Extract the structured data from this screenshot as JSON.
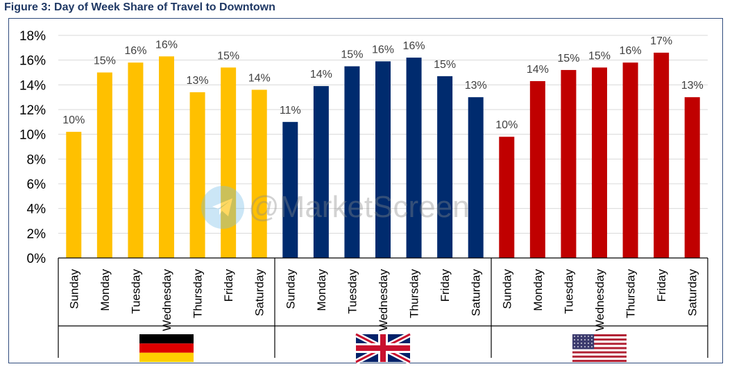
{
  "figure_title": "Figure 3: Day of Week Share of Travel to Downtown",
  "watermark": "@MarketScreen",
  "colors": {
    "germany": "#FFC000",
    "uk": "#002B6E",
    "us": "#C00000",
    "grid": "#d9d9d9",
    "axis": "#000000"
  },
  "chart_data": {
    "type": "bar",
    "title": "Day of Week Share of Travel to Downtown",
    "ylabel": "",
    "ylim": [
      0,
      18
    ],
    "yticks": [
      "0%",
      "2%",
      "4%",
      "6%",
      "8%",
      "10%",
      "12%",
      "14%",
      "16%",
      "18%"
    ],
    "grid": true,
    "groups": [
      {
        "name": "Germany",
        "flag": "germany-flag",
        "color": "#FFC000",
        "categories": [
          "Sunday",
          "Monday",
          "Tuesday",
          "Wednesday",
          "Thursday",
          "Friday",
          "Saturday"
        ],
        "values": [
          10.2,
          15.0,
          15.8,
          16.3,
          13.4,
          15.4,
          13.6
        ],
        "labels": [
          "10%",
          "15%",
          "16%",
          "16%",
          "13%",
          "15%",
          "14%"
        ]
      },
      {
        "name": "United Kingdom",
        "flag": "uk-flag",
        "color": "#002B6E",
        "categories": [
          "Sunday",
          "Monday",
          "Tuesday",
          "Wednesday",
          "Thursday",
          "Friday",
          "Saturday"
        ],
        "values": [
          11.0,
          13.9,
          15.5,
          15.9,
          16.2,
          14.7,
          13.0
        ],
        "labels": [
          "11%",
          "14%",
          "15%",
          "16%",
          "16%",
          "15%",
          "13%"
        ]
      },
      {
        "name": "United States",
        "flag": "us-flag",
        "color": "#C00000",
        "categories": [
          "Sunday",
          "Monday",
          "Tuesday",
          "Wednesday",
          "Thursday",
          "Friday",
          "Saturday"
        ],
        "values": [
          9.8,
          14.3,
          15.2,
          15.4,
          15.8,
          16.6,
          13.0
        ],
        "labels": [
          "10%",
          "14%",
          "15%",
          "15%",
          "16%",
          "17%",
          "13%"
        ]
      }
    ]
  }
}
